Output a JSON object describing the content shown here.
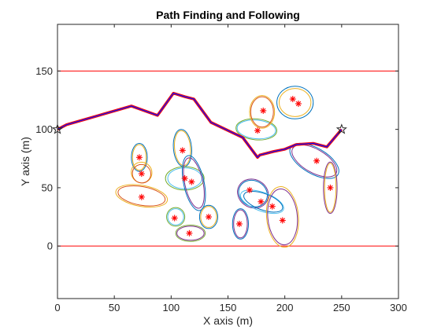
{
  "chart_data": {
    "type": "line",
    "title": "Path Finding and Following",
    "xlabel": "X axis (m)",
    "ylabel": "Y axis (m)",
    "xlim": [
      0,
      300
    ],
    "ylim": [
      -45,
      190
    ],
    "xticks": [
      0,
      50,
      100,
      150,
      200,
      250,
      300
    ],
    "yticks": [
      0,
      50,
      100,
      150
    ],
    "grid": false,
    "boundaries": [
      {
        "y": 0,
        "color": "#ff0000"
      },
      {
        "y": 150,
        "color": "#ff0000"
      }
    ],
    "start": {
      "x": 0,
      "y": 100
    },
    "goal": {
      "x": 250,
      "y": 100
    },
    "planned_path": {
      "color": "#ff0000",
      "x": [
        0,
        8,
        65,
        88,
        102,
        112,
        120,
        135,
        163,
        176,
        178,
        190,
        200,
        210,
        225,
        237,
        250
      ],
      "y": [
        100,
        104,
        120,
        112,
        131,
        128,
        126,
        106,
        93,
        76,
        78,
        81,
        83,
        87,
        88,
        85,
        100
      ]
    },
    "followed_path": {
      "color": "#0000ff",
      "x": [
        0,
        8,
        65,
        88,
        102,
        112,
        120,
        135,
        163,
        176,
        178,
        190,
        200,
        210,
        225,
        237,
        250
      ],
      "y": [
        100,
        104,
        120,
        112,
        131,
        128,
        126,
        106,
        93,
        76,
        78,
        81,
        83,
        87,
        88,
        85,
        100
      ]
    },
    "obstacles": {
      "centers_x": [
        72,
        74,
        74,
        110,
        112,
        118,
        103,
        116,
        133,
        160,
        169,
        179,
        189,
        198,
        176,
        181,
        207,
        212,
        228,
        240
      ],
      "centers_y": [
        76,
        62,
        42,
        82,
        58,
        55,
        24,
        11,
        25,
        19,
        48,
        38,
        34,
        22,
        99,
        116,
        126,
        122,
        73,
        50
      ],
      "marker_color": "#ff0000"
    },
    "uncertainty_ellipses": [
      {
        "cx": 72,
        "cy": 76,
        "rx": 7,
        "ry": 12,
        "rot": 0,
        "color": "#0072bd"
      },
      {
        "cx": 72,
        "cy": 76,
        "rx": 6,
        "ry": 11,
        "rot": 0,
        "color": "#edb120"
      },
      {
        "cx": 74,
        "cy": 63,
        "rx": 9,
        "ry": 9,
        "rot": 40,
        "color": "#edb120"
      },
      {
        "cx": 74,
        "cy": 62,
        "rx": 8,
        "ry": 8,
        "rot": 40,
        "color": "#d95319"
      },
      {
        "cx": 74,
        "cy": 43,
        "rx": 23,
        "ry": 9,
        "rot": -10,
        "color": "#edb120"
      },
      {
        "cx": 74,
        "cy": 43,
        "rx": 21,
        "ry": 8,
        "rot": -10,
        "color": "#d95319"
      },
      {
        "cx": 110,
        "cy": 84,
        "rx": 8,
        "ry": 16,
        "rot": 5,
        "color": "#0072bd"
      },
      {
        "cx": 110,
        "cy": 84,
        "rx": 7,
        "ry": 15,
        "rot": 5,
        "color": "#edb120"
      },
      {
        "cx": 112,
        "cy": 58,
        "rx": 17,
        "ry": 10,
        "rot": 0,
        "color": "#77ac30"
      },
      {
        "cx": 112,
        "cy": 58,
        "rx": 15,
        "ry": 9,
        "rot": 0,
        "color": "#4dbeee"
      },
      {
        "cx": 120,
        "cy": 54,
        "rx": 9,
        "ry": 24,
        "rot": 12,
        "color": "#0072bd"
      },
      {
        "cx": 120,
        "cy": 54,
        "rx": 8,
        "ry": 22,
        "rot": 12,
        "color": "#7e2f8e"
      },
      {
        "cx": 104,
        "cy": 25,
        "rx": 8,
        "ry": 8,
        "rot": 0,
        "color": "#77ac30"
      },
      {
        "cx": 104,
        "cy": 25,
        "rx": 7,
        "ry": 7,
        "rot": 0,
        "color": "#4dbeee"
      },
      {
        "cx": 117,
        "cy": 11,
        "rx": 13,
        "ry": 7,
        "rot": 0,
        "color": "#77ac30"
      },
      {
        "cx": 117,
        "cy": 11,
        "rx": 12,
        "ry": 6,
        "rot": 0,
        "color": "#7e2f8e"
      },
      {
        "cx": 133,
        "cy": 25,
        "rx": 8,
        "ry": 10,
        "rot": 0,
        "color": "#0072bd"
      },
      {
        "cx": 133,
        "cy": 25,
        "rx": 7,
        "ry": 9,
        "rot": 0,
        "color": "#edb120"
      },
      {
        "cx": 161,
        "cy": 19,
        "rx": 7,
        "ry": 13,
        "rot": 0,
        "color": "#0072bd"
      },
      {
        "cx": 161,
        "cy": 19,
        "rx": 6,
        "ry": 12,
        "rot": 0,
        "color": "#7e2f8e"
      },
      {
        "cx": 172,
        "cy": 45,
        "rx": 14,
        "ry": 12,
        "rot": -30,
        "color": "#7e2f8e"
      },
      {
        "cx": 172,
        "cy": 45,
        "rx": 13,
        "ry": 11,
        "rot": -30,
        "color": "#0072bd"
      },
      {
        "cx": 180,
        "cy": 38,
        "rx": 20,
        "ry": 8,
        "rot": -20,
        "color": "#4dbeee"
      },
      {
        "cx": 181,
        "cy": 38,
        "rx": 18,
        "ry": 7,
        "rot": -20,
        "color": "#0072bd"
      },
      {
        "cx": 198,
        "cy": 25,
        "rx": 14,
        "ry": 26,
        "rot": 5,
        "color": "#edb120"
      },
      {
        "cx": 198,
        "cy": 25,
        "rx": 13,
        "ry": 24,
        "rot": 5,
        "color": "#7e2f8e"
      },
      {
        "cx": 175,
        "cy": 100,
        "rx": 18,
        "ry": 9,
        "rot": -5,
        "color": "#77ac30"
      },
      {
        "cx": 175,
        "cy": 100,
        "rx": 17,
        "ry": 8,
        "rot": -5,
        "color": "#4dbeee"
      },
      {
        "cx": 180,
        "cy": 115,
        "rx": 11,
        "ry": 14,
        "rot": 0,
        "color": "#edb120"
      },
      {
        "cx": 180,
        "cy": 115,
        "rx": 10,
        "ry": 13,
        "rot": 0,
        "color": "#d95319"
      },
      {
        "cx": 209,
        "cy": 123,
        "rx": 16,
        "ry": 14,
        "rot": 0,
        "color": "#0072bd"
      },
      {
        "cx": 209,
        "cy": 123,
        "rx": 14,
        "ry": 12,
        "rot": 0,
        "color": "#edb120"
      },
      {
        "cx": 226,
        "cy": 73,
        "rx": 24,
        "ry": 11,
        "rot": -30,
        "color": "#0072bd"
      },
      {
        "cx": 226,
        "cy": 73,
        "rx": 22,
        "ry": 10,
        "rot": -30,
        "color": "#7e2f8e"
      },
      {
        "cx": 240,
        "cy": 50,
        "rx": 6,
        "ry": 22,
        "rot": 0,
        "color": "#7e2f8e"
      },
      {
        "cx": 240,
        "cy": 50,
        "rx": 5,
        "ry": 21,
        "rot": 0,
        "color": "#edb120"
      }
    ],
    "colors": {
      "axis": "#262626",
      "path_red": "#ff0000",
      "path_blue": "#0000ff",
      "path_purple": "#7e2f8e"
    }
  }
}
